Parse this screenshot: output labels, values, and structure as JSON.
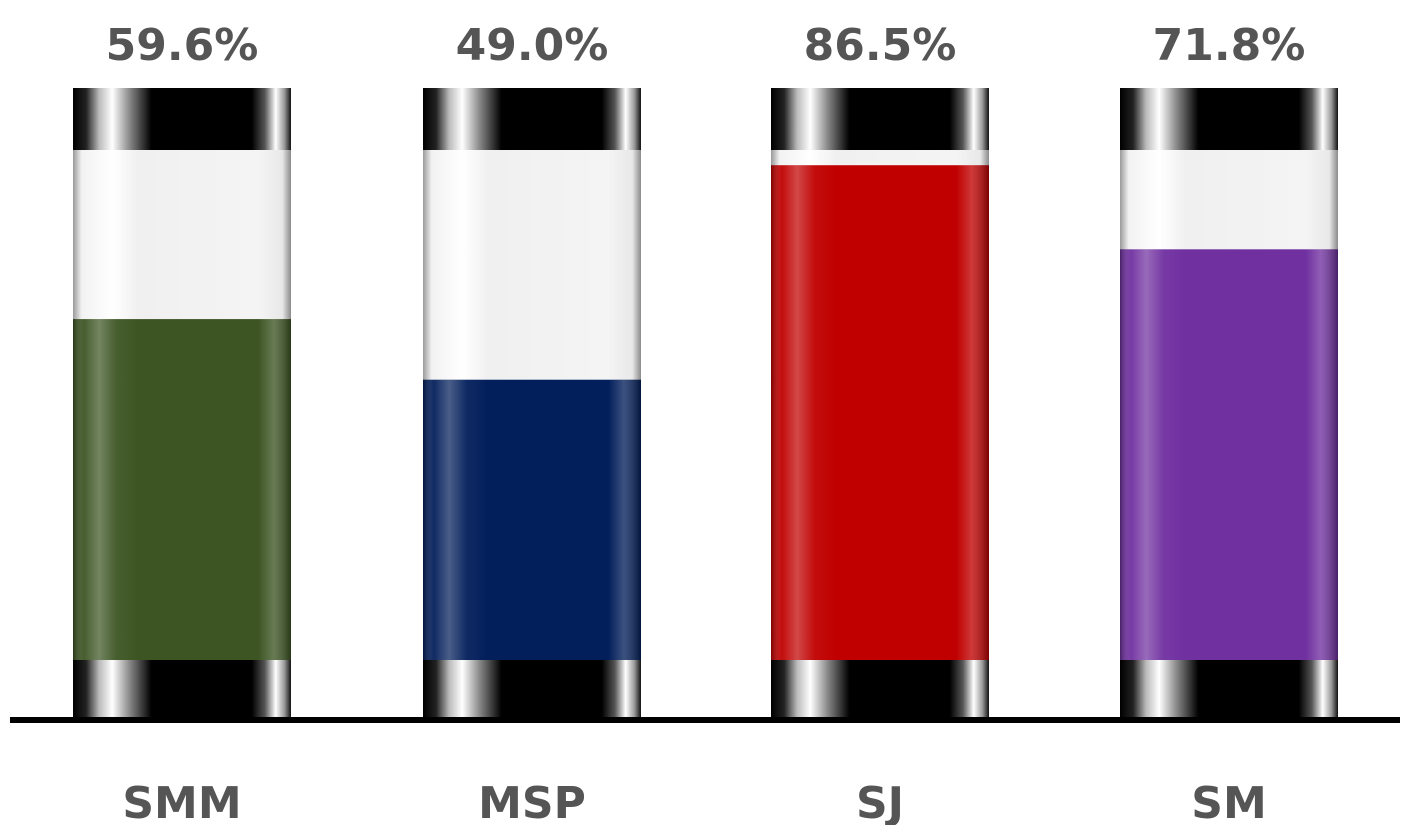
{
  "chart_data": {
    "type": "bar",
    "categories": [
      "SMM",
      "MSP",
      "SJ",
      "SM"
    ],
    "values": [
      59.6,
      49.0,
      86.5,
      71.8
    ],
    "value_labels": [
      "59.6%",
      "49.0%",
      "86.5%",
      "71.8%"
    ],
    "colors": [
      "#3d5523",
      "#031f5b",
      "#c00000",
      "#7030a0"
    ],
    "ylim": [
      0,
      100
    ],
    "title": "",
    "xlabel": "",
    "ylabel": "",
    "grid": false,
    "legend": "none"
  }
}
